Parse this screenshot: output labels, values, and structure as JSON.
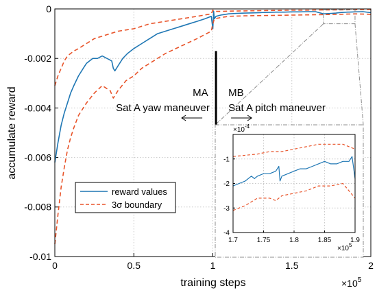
{
  "chart_data": [
    {
      "type": "line",
      "title": "",
      "xlabel": "training steps",
      "ylabel": "accumulate reward",
      "x_exponent_label": "×10",
      "x_exponent_power": "5",
      "xlim": [
        0,
        2
      ],
      "ylim": [
        -0.01,
        0
      ],
      "xticks": [
        0,
        0.5,
        1,
        1.5,
        2
      ],
      "xtick_labels": [
        "0",
        "0.5",
        "1",
        "1.5",
        "2"
      ],
      "yticks": [
        -0.01,
        -0.008,
        -0.006,
        -0.004,
        -0.002,
        0
      ],
      "ytick_labels": [
        "-0.01",
        "-0.008",
        "-0.006",
        "-0.004",
        "-0.002",
        "0"
      ],
      "grid": true,
      "legend_position": "bottom-left",
      "series": [
        {
          "name": "reward values",
          "color": "#1f77b4",
          "style": "solid",
          "x": [
            0,
            0.02,
            0.04,
            0.06,
            0.08,
            0.1,
            0.12,
            0.15,
            0.18,
            0.2,
            0.22,
            0.24,
            0.27,
            0.3,
            0.33,
            0.36,
            0.37,
            0.38,
            0.4,
            0.43,
            0.46,
            0.5,
            0.55,
            0.6,
            0.65,
            0.7,
            0.75,
            0.8,
            0.85,
            0.9,
            0.95,
            0.99,
            1.0,
            1.005,
            1.01,
            1.02,
            1.05,
            1.1,
            1.15,
            1.2,
            1.25,
            1.3,
            1.35,
            1.4,
            1.45,
            1.5,
            1.55,
            1.6,
            1.65,
            1.7,
            1.75,
            1.78,
            1.8,
            1.85,
            1.9,
            1.95,
            2.0
          ],
          "y": [
            -0.0062,
            -0.0054,
            -0.0047,
            -0.0042,
            -0.0038,
            -0.0034,
            -0.0031,
            -0.0027,
            -0.0024,
            -0.0022,
            -0.0021,
            -0.002,
            -0.002,
            -0.0019,
            -0.002,
            -0.0021,
            -0.0024,
            -0.0025,
            -0.0023,
            -0.002,
            -0.0018,
            -0.0016,
            -0.0014,
            -0.0012,
            -0.001,
            -0.0009,
            -0.0008,
            -0.0007,
            -0.0006,
            -0.0005,
            -0.0004,
            -0.0003,
            -0.0008,
            -0.0001,
            -0.0004,
            -0.0003,
            -0.00025,
            -0.0002,
            -0.00018,
            -0.00017,
            -0.00016,
            -0.00015,
            -0.00014,
            -0.00013,
            -0.00013,
            -0.00012,
            -0.00012,
            -0.00011,
            -0.00011,
            -0.0002,
            -0.00018,
            -0.00017,
            -0.00015,
            -0.00013,
            -0.00012,
            -0.00011,
            -0.00015
          ]
        },
        {
          "name": "3σ boundary",
          "color": "#e8542a",
          "style": "dashed",
          "x": [
            0,
            0.02,
            0.04,
            0.06,
            0.08,
            0.1,
            0.12,
            0.15,
            0.2,
            0.25,
            0.3,
            0.35,
            0.4,
            0.45,
            0.5,
            0.55,
            0.6,
            0.7,
            0.8,
            0.9,
            0.99,
            1.0,
            1.01,
            1.05,
            1.1,
            1.2,
            1.3,
            1.4,
            1.5,
            1.6,
            1.7,
            1.8,
            1.9,
            2.0
          ],
          "y": [
            -0.0031,
            -0.0027,
            -0.0024,
            -0.0021,
            -0.0019,
            -0.0018,
            -0.0017,
            -0.0016,
            -0.0014,
            -0.0012,
            -0.0011,
            -0.001,
            -0.0009,
            -0.00085,
            -0.0008,
            -0.0007,
            -0.0006,
            -0.0005,
            -0.0004,
            -0.0003,
            -0.0002,
            -5e-05,
            -0.0001,
            -0.0001,
            -9e-05,
            -8e-05,
            -7e-05,
            -6e-05,
            -5e-05,
            -5e-05,
            -4e-05,
            -4e-05,
            -3e-05,
            -2e-05
          ]
        },
        {
          "name": "",
          "color": "#e8542a",
          "style": "dashed",
          "x": [
            0,
            0.02,
            0.04,
            0.06,
            0.08,
            0.1,
            0.12,
            0.15,
            0.18,
            0.2,
            0.25,
            0.3,
            0.35,
            0.37,
            0.4,
            0.45,
            0.5,
            0.55,
            0.6,
            0.65,
            0.7,
            0.8,
            0.9,
            0.99,
            1.0,
            1.01,
            1.05,
            1.1,
            1.2,
            1.3,
            1.4,
            1.5,
            1.6,
            1.7,
            1.8,
            1.9,
            2.0
          ],
          "y": [
            -0.0095,
            -0.0083,
            -0.0072,
            -0.0064,
            -0.0057,
            -0.0052,
            -0.0048,
            -0.0043,
            -0.004,
            -0.0038,
            -0.0034,
            -0.0031,
            -0.0033,
            -0.0036,
            -0.0033,
            -0.0029,
            -0.0027,
            -0.0024,
            -0.0022,
            -0.002,
            -0.0018,
            -0.0015,
            -0.0012,
            -0.0009,
            -0.0006,
            -0.0004,
            -0.00035,
            -0.0003,
            -0.00028,
            -0.00027,
            -0.00026,
            -0.00025,
            -0.00024,
            -0.00023,
            -0.00022,
            -0.0002,
            -0.00022
          ]
        }
      ],
      "annotations": {
        "ma_label": "MA",
        "ma_desc": "Sat A yaw maneuver",
        "mb_label": "MB",
        "mb_desc": "Sat A pitch maneuver",
        "divider_x": 1.02
      }
    },
    {
      "type": "line",
      "inset": true,
      "xlim": [
        1.7,
        1.9
      ],
      "ylim": [
        -0.0004,
        0
      ],
      "xticks": [
        1.7,
        1.75,
        1.8,
        1.85,
        1.9
      ],
      "xtick_labels": [
        "1.7",
        "1.75",
        "1.8",
        "1.85",
        "1.9"
      ],
      "yticks": [
        -0.0004,
        -0.0003,
        -0.0002,
        -0.0001
      ],
      "ytick_labels": [
        "-4",
        "-3",
        "-2",
        "-1"
      ],
      "y_exponent_label": "×10",
      "y_exponent_power": "-4",
      "x_exponent_label": "×10",
      "x_exponent_power": "5",
      "grid": true,
      "series": [
        {
          "name": "reward values",
          "color": "#1f77b4",
          "style": "solid",
          "x": [
            1.7,
            1.71,
            1.72,
            1.73,
            1.735,
            1.74,
            1.75,
            1.76,
            1.77,
            1.775,
            1.777,
            1.78,
            1.79,
            1.8,
            1.81,
            1.82,
            1.83,
            1.84,
            1.85,
            1.86,
            1.87,
            1.88,
            1.89,
            1.895,
            1.9
          ],
          "y": [
            -0.00021,
            -0.0002,
            -0.00019,
            -0.00017,
            -0.00018,
            -0.00017,
            -0.00016,
            -0.00016,
            -0.00015,
            -0.00013,
            -0.00019,
            -0.00017,
            -0.00016,
            -0.00015,
            -0.00014,
            -0.00014,
            -0.00013,
            -0.00012,
            -0.00011,
            -0.00012,
            -0.00012,
            -0.00011,
            -0.00011,
            -9e-05,
            -0.00018
          ]
        },
        {
          "name": "",
          "color": "#e8542a",
          "style": "dashed",
          "x": [
            1.7,
            1.72,
            1.74,
            1.76,
            1.78,
            1.8,
            1.82,
            1.84,
            1.86,
            1.88,
            1.9
          ],
          "y": [
            -9e-05,
            -8.5e-05,
            -8e-05,
            -7e-05,
            -7e-05,
            -6e-05,
            -5e-05,
            -4e-05,
            -4e-05,
            -4e-05,
            -6e-05
          ]
        },
        {
          "name": "",
          "color": "#e8542a",
          "style": "dashed",
          "x": [
            1.7,
            1.72,
            1.74,
            1.76,
            1.77,
            1.78,
            1.8,
            1.82,
            1.84,
            1.86,
            1.88,
            1.9
          ],
          "y": [
            -0.00031,
            -0.00029,
            -0.00026,
            -0.00026,
            -0.00027,
            -0.00025,
            -0.00024,
            -0.00023,
            -0.00021,
            -0.00021,
            -0.0002,
            -0.00026
          ]
        }
      ]
    }
  ]
}
